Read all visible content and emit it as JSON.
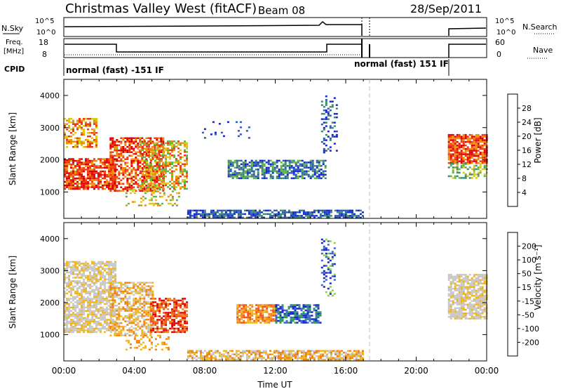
{
  "header": {
    "title": "Christmas Valley West (fitACF)",
    "beam": "Beam 08",
    "date": "28/Sep/2011"
  },
  "params": {
    "nsky_label": "N.Sky",
    "nsearch_label": "N.Search",
    "freq_label_1": "Freq.",
    "freq_label_2": "[MHz]",
    "nave_label": "Nave",
    "cpid_label": "CPID",
    "noise_ticks": [
      "10^5",
      "10^0"
    ],
    "freq_ticks": [
      "18",
      "8"
    ],
    "nave_ticks": [
      "60",
      "0"
    ],
    "cpid_text_1": "normal (fast) -151 IF",
    "cpid_text_2": "normal (fast) 151 IF"
  },
  "axes": {
    "ylabel": "Slant Range [km]",
    "xlabel": "Time UT",
    "xticks": [
      "00:00",
      "04:00",
      "08:00",
      "12:00",
      "16:00",
      "20:00",
      "00:00"
    ],
    "yticks": [
      "1000",
      "2000",
      "3000",
      "4000"
    ]
  },
  "power_scale": {
    "label": "Power [dB]",
    "ticks": [
      "4",
      "8",
      "12",
      "16",
      "20",
      "24",
      "28"
    ],
    "colors": [
      "#1428d2",
      "#2d5ab4",
      "#3c8a6e",
      "#5fb446",
      "#dcc814",
      "#f08c0a",
      "#ee3a10",
      "#e00000"
    ]
  },
  "velocity_scale": {
    "label": "Velocity [m s⁻¹]",
    "ticks": [
      "200",
      "100",
      "50",
      "15",
      "-15",
      "-50",
      "-100",
      "-200"
    ],
    "colors": [
      "#1428c8",
      "#3c64d2",
      "#28a040",
      "#8cd046",
      "#c8c8c8",
      "#f0b41e",
      "#f08214",
      "#f05014",
      "#e00000"
    ]
  },
  "chart_data": [
    {
      "type": "heatmap",
      "title": "Power",
      "x_range_hours": [
        0,
        24
      ],
      "y_range_km": [
        180,
        4500
      ],
      "data_gap_hours": [
        17,
        21.8
      ],
      "regions": [
        {
          "t": [
            0.0,
            3.0
          ],
          "r": [
            1100,
            2100
          ],
          "value": "27 dB"
        },
        {
          "t": [
            0.0,
            2.0
          ],
          "r": [
            2400,
            3300
          ],
          "value": "22 dB"
        },
        {
          "t": [
            2.5,
            5.8
          ],
          "r": [
            1000,
            2700
          ],
          "value": "27 dB"
        },
        {
          "t": [
            4.3,
            7.0
          ],
          "r": [
            1100,
            2600
          ],
          "value": "18 dB"
        },
        {
          "t": [
            9.3,
            14.8
          ],
          "r": [
            1400,
            2000
          ],
          "value": "10 dB"
        },
        {
          "t": [
            7.0,
            17.0
          ],
          "r": [
            200,
            450
          ],
          "value": "5 dB"
        },
        {
          "t": [
            21.8,
            24.0
          ],
          "r": [
            1800,
            2900
          ],
          "value": "24 dB"
        }
      ]
    },
    {
      "type": "heatmap",
      "title": "Velocity",
      "x_range_hours": [
        0,
        24
      ],
      "y_range_km": [
        180,
        4500
      ],
      "data_gap_hours": [
        17,
        21.8
      ],
      "regions": [
        {
          "t": [
            0.0,
            3.0
          ],
          "r": [
            1100,
            3300
          ],
          "value": "0 m/s"
        },
        {
          "t": [
            3.0,
            5.0
          ],
          "r": [
            1000,
            2600
          ],
          "value": "-60 m/s"
        },
        {
          "t": [
            5.0,
            7.0
          ],
          "r": [
            1100,
            2100
          ],
          "value": "-200 m/s"
        },
        {
          "t": [
            9.8,
            12.0
          ],
          "r": [
            1400,
            1900
          ],
          "value": "-90 m/s"
        },
        {
          "t": [
            12.0,
            14.6
          ],
          "r": [
            1400,
            1900
          ],
          "value": "120 m/s"
        },
        {
          "t": [
            7.0,
            17.0
          ],
          "r": [
            200,
            500
          ],
          "value": "-40 m/s"
        },
        {
          "t": [
            21.8,
            24.0
          ],
          "r": [
            1500,
            2900
          ],
          "value": "0 m/s"
        }
      ]
    }
  ]
}
